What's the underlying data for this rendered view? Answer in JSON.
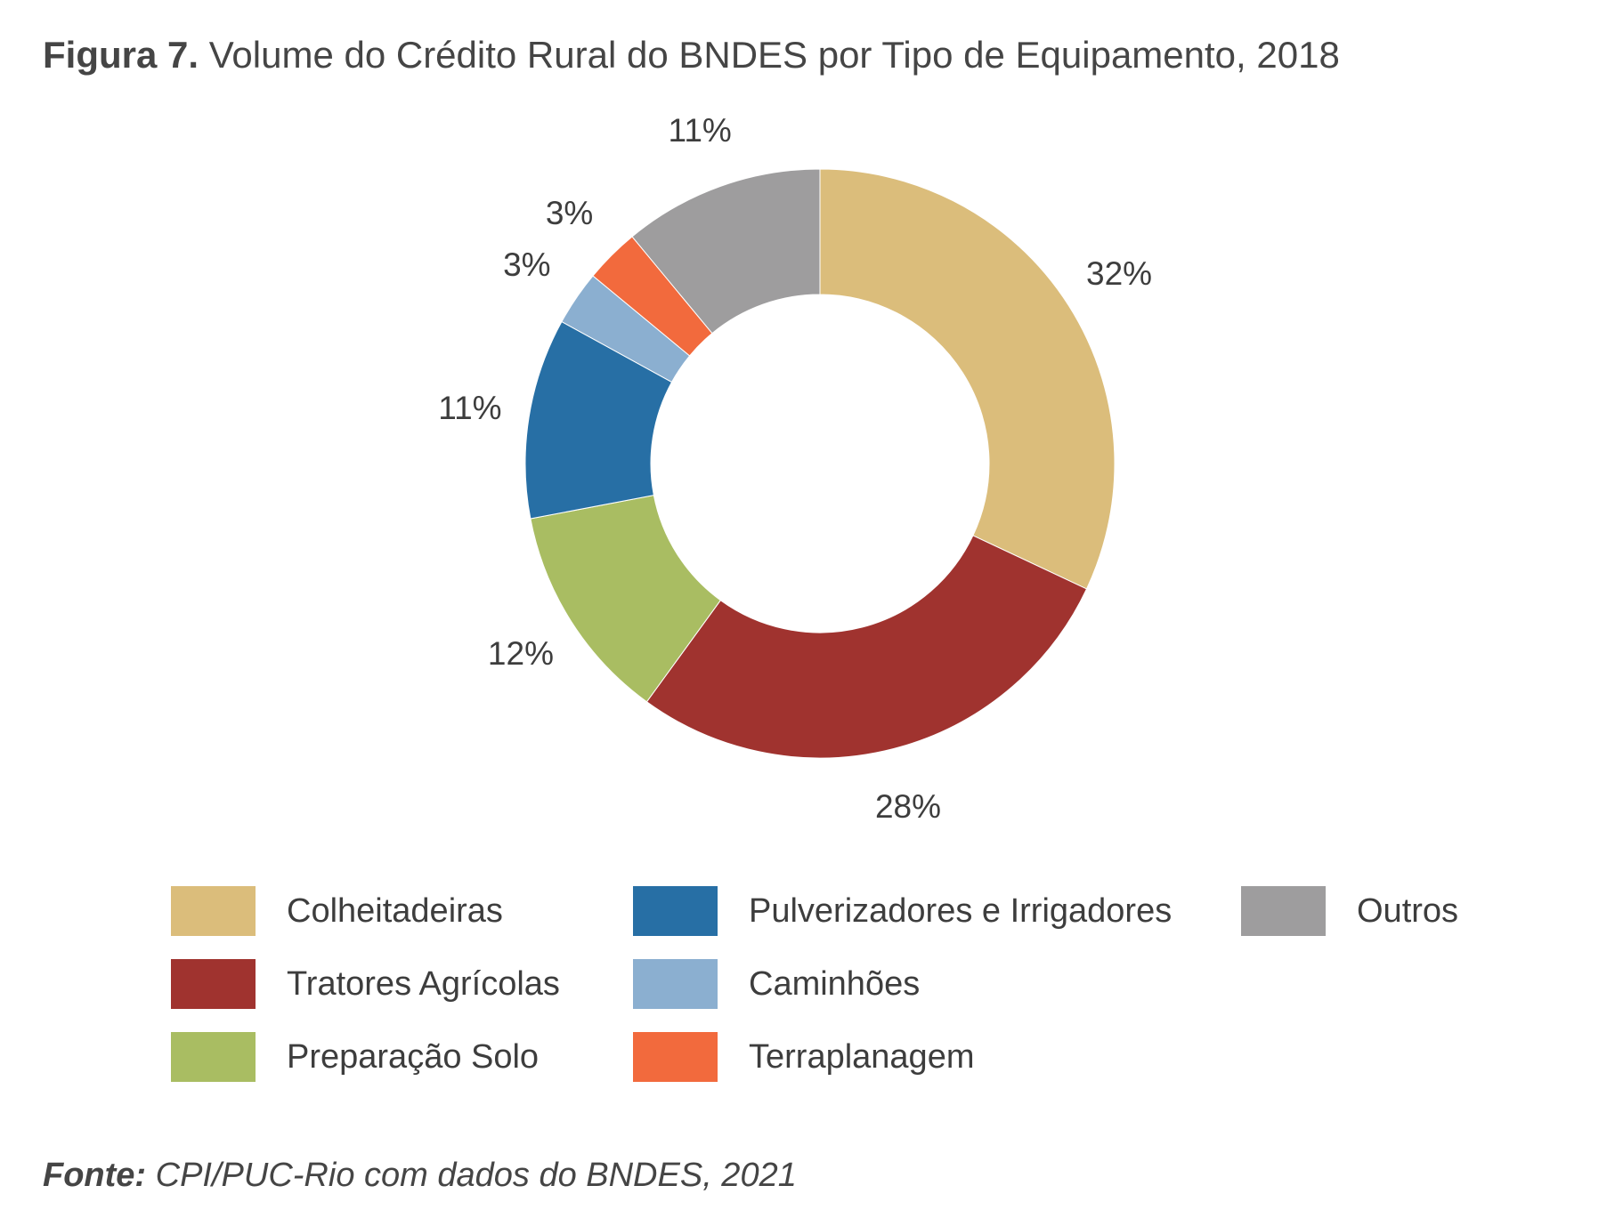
{
  "figure": {
    "label": "Figura 7.",
    "title": "Volume do Crédito Rural do BNDES por Tipo de Equipamento, 2018"
  },
  "source": {
    "label": "Fonte:",
    "text": "CPI/PUC-Rio com dados do BNDES, 2021"
  },
  "chart_data": {
    "type": "pie",
    "variant": "donut",
    "title": "Volume do Crédito Rural do BNDES por Tipo de Equipamento, 2018",
    "unit": "%",
    "slices": [
      {
        "name": "Colheitadeiras",
        "value": 32,
        "label": "32%",
        "color": "#dbbd7b"
      },
      {
        "name": "Tratores Agrícolas",
        "value": 28,
        "label": "28%",
        "color": "#a0332f"
      },
      {
        "name": "Preparação Solo",
        "value": 12,
        "label": "12%",
        "color": "#a9bd62"
      },
      {
        "name": "Pulverizadores e Irrigadores",
        "value": 11,
        "label": "11%",
        "color": "#276fa5"
      },
      {
        "name": "Caminhões",
        "value": 3,
        "label": "3%",
        "color": "#8bafd0"
      },
      {
        "name": "Terraplanagem",
        "value": 3,
        "label": "3%",
        "color": "#f26a3d"
      },
      {
        "name": "Outros",
        "value": 11,
        "label": "11%",
        "color": "#9e9d9e"
      }
    ],
    "legend": {
      "placement": "bottom",
      "columns": [
        [
          "Colheitadeiras",
          "Tratores Agrícolas",
          "Preparação Solo"
        ],
        [
          "Pulverizadores e Irrigadores",
          "Caminhões",
          "Terraplanagem"
        ],
        [
          "Outros"
        ]
      ]
    }
  }
}
